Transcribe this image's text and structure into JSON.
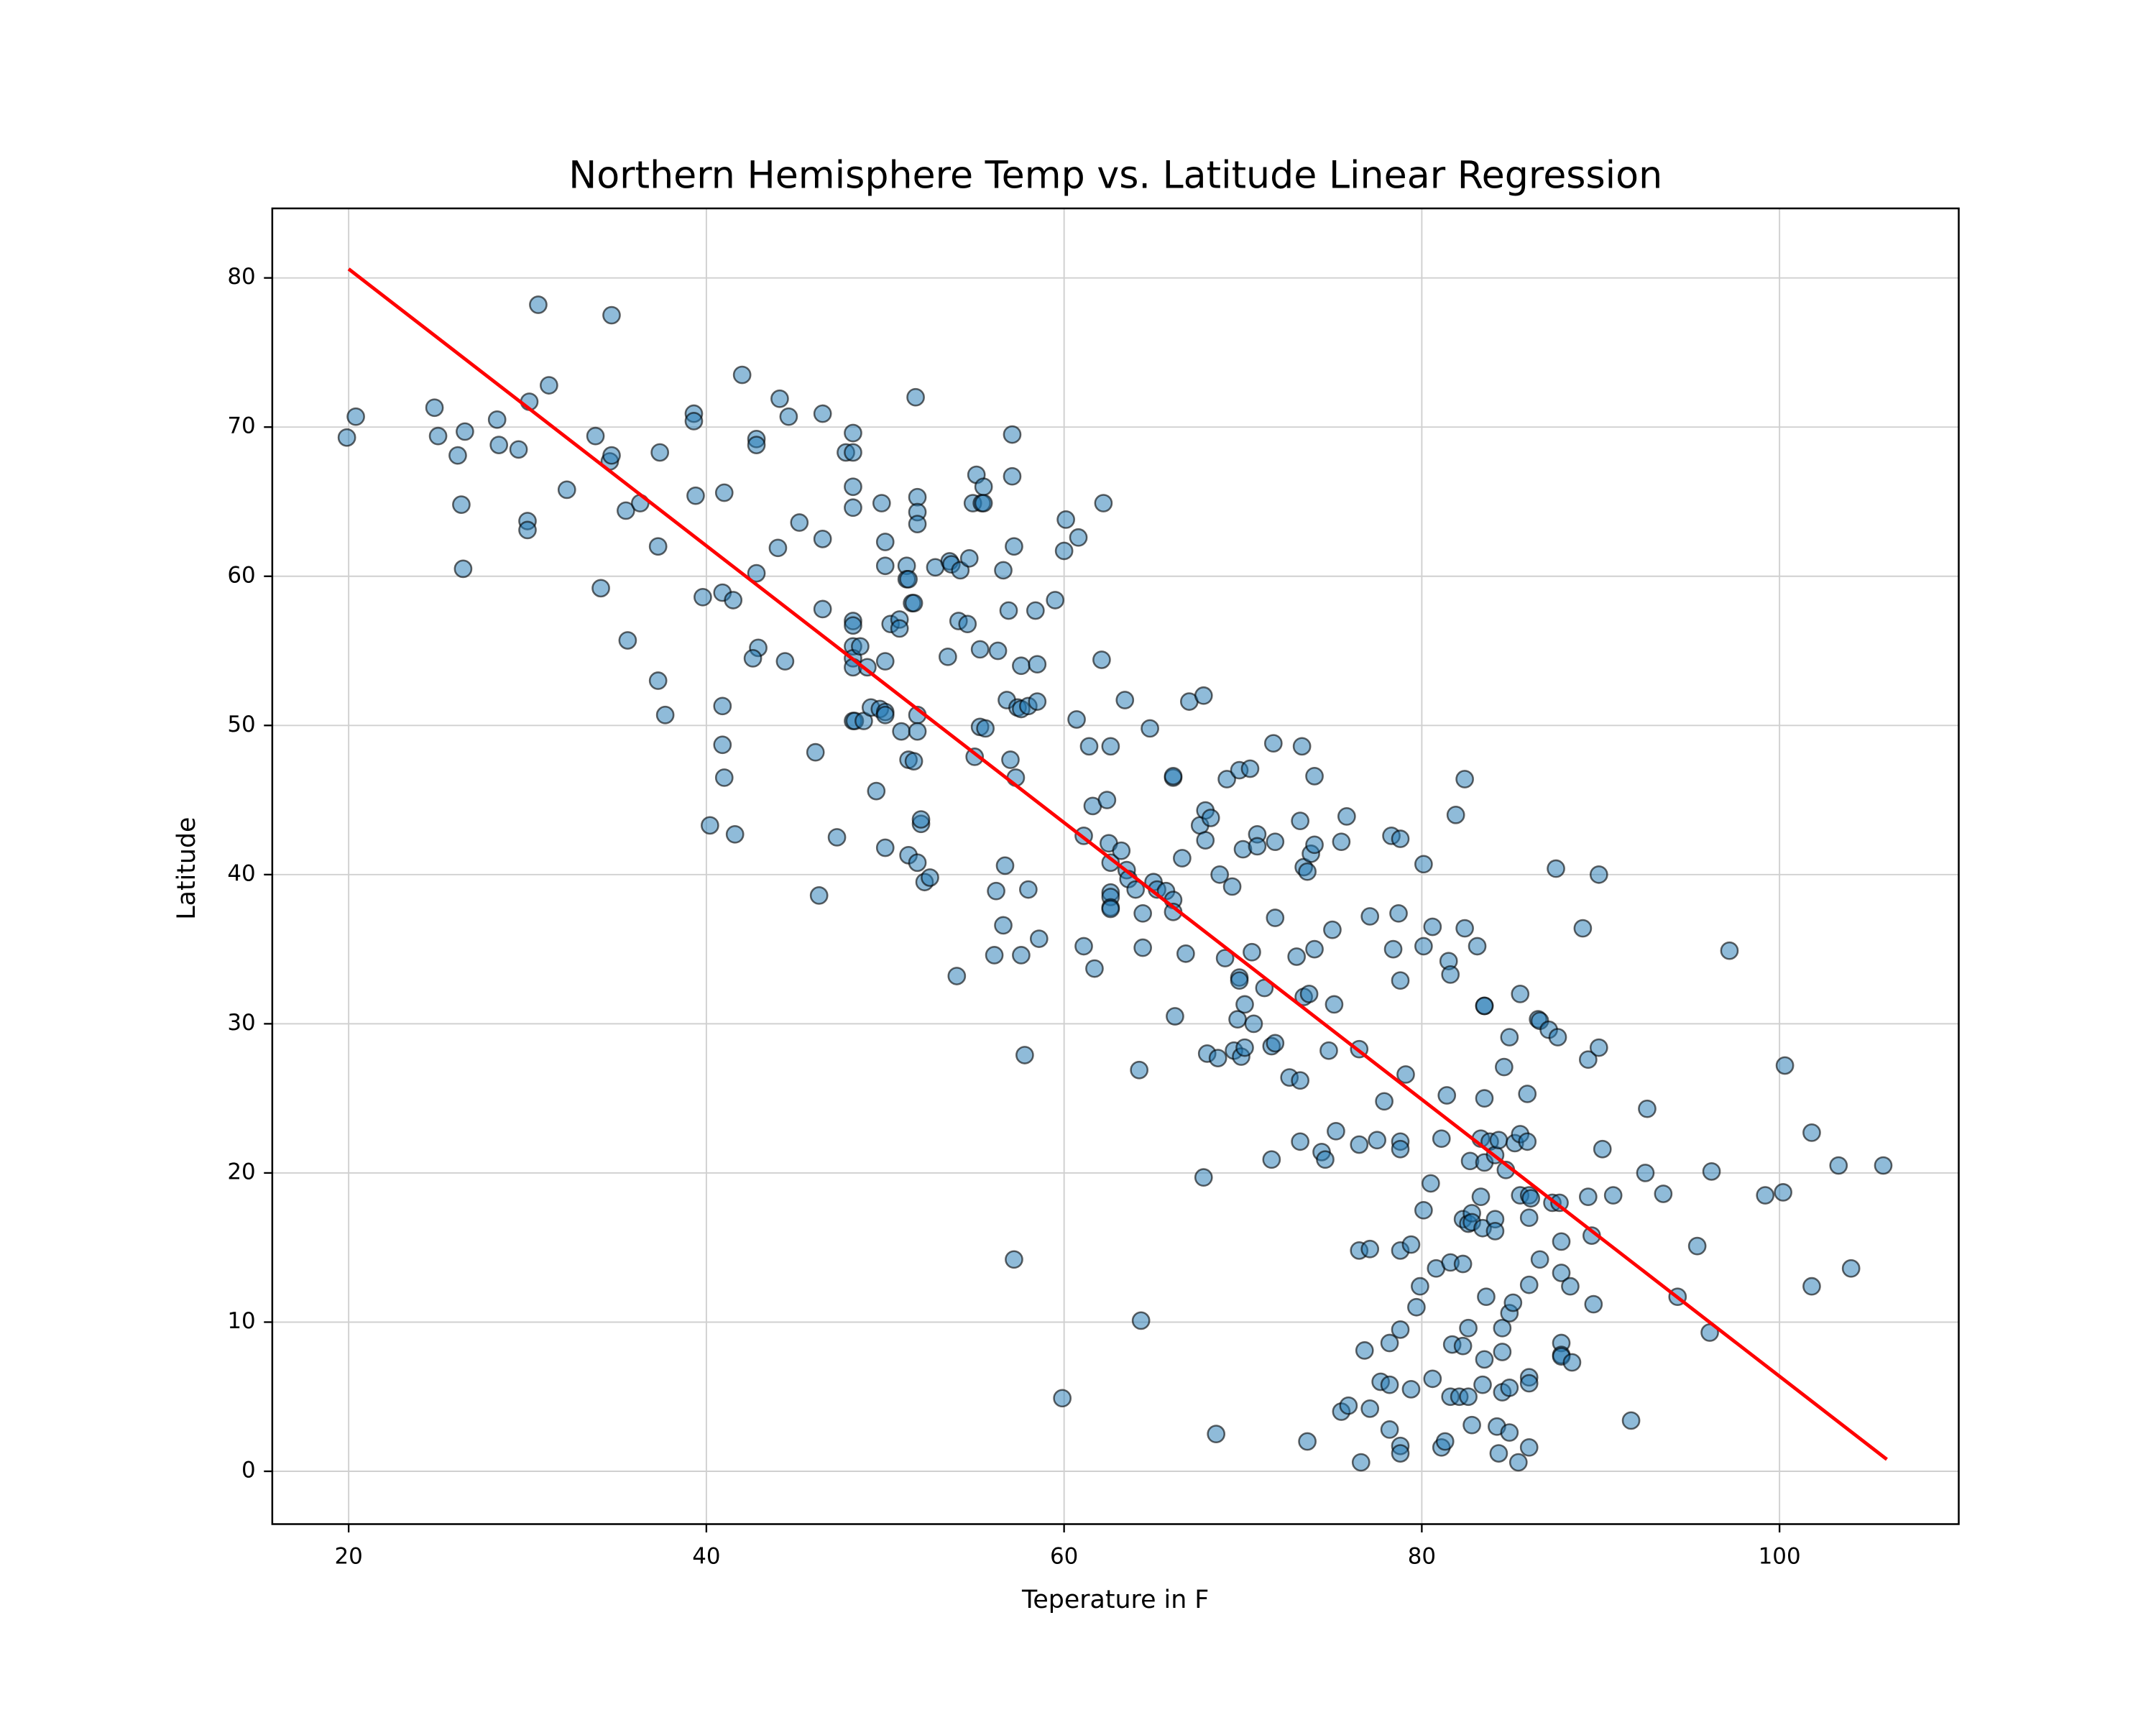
{
  "chart_data": {
    "type": "scatter",
    "title": "Northern Hemisphere Temp vs. Latitude Linear Regression",
    "xlabel": "Teperature in F",
    "ylabel": "Latitude",
    "xlim": [
      15.73,
      110.02
    ],
    "ylim": [
      -3.54,
      84.66
    ],
    "xticks": [
      20,
      40,
      60,
      80,
      100
    ],
    "yticks": [
      0,
      10,
      20,
      30,
      40,
      50,
      60,
      70,
      80
    ],
    "grid": true,
    "series": [
      {
        "type": "scatter",
        "color": "#1f77b4",
        "x": [
          19.9,
          20.4,
          24.8,
          25,
          26.5,
          26.1,
          26.3,
          26.4,
          28.3,
          28.4,
          29.5,
          30.1,
          30.6,
          31.2,
          30,
          30,
          32.2,
          33.8,
          34.6,
          34.7,
          34.7,
          34.1,
          35.5,
          35.6,
          36.3,
          37.4,
          37.3,
          37.3,
          37.7,
          39.3,
          39.3,
          39.4,
          39.8,
          40.2,
          40.9,
          41,
          41.5,
          40.9,
          40.9,
          41,
          41.6,
          42,
          42.8,
          42.8,
          42.8,
          42.9,
          42.6,
          44.1,
          44,
          44.6,
          44.4,
          45.2,
          46.1,
          46.3,
          46.5,
          46.5,
          46.5,
          47.3,
          47.8,
          48.2,
          48.2,
          48.2,
          48.2,
          48.2,
          48.2,
          48.2,
          48.2,
          48.2,
          48.2,
          48.3,
          48.6,
          48.8,
          49,
          49.2,
          49.5,
          49.7,
          49.8,
          50,
          50,
          50,
          50,
          50,
          50,
          50.3,
          50.8,
          50.8,
          50.9,
          51.2,
          51.2,
          51.3,
          51.3,
          51.3,
          51.5,
          51.6,
          51.6,
          51.7,
          51.8,
          51.8,
          51.8,
          51.8,
          51.8,
          51.8,
          52,
          52,
          52.2,
          52.5,
          52.8,
          53.5,
          53.6,
          53.7,
          54.1,
          54.2,
          54,
          54.6,
          54.7,
          54.9,
          55,
          55.1,
          55.3,
          55.3,
          55.4,
          55.5,
          55.5,
          55.6,
          56.1,
          56.2,
          56.3,
          56.6,
          56.6,
          56.7,
          56.8,
          56.9,
          57,
          57.1,
          57.1,
          57.2,
          57.2,
          57.3,
          57.4,
          57.6,
          57.6,
          57.6,
          57.8,
          58,
          58,
          58.4,
          58.5,
          58.5,
          58.6,
          59.5,
          60,
          60.1,
          59.9,
          60.7,
          60.8,
          61.1,
          61.1,
          61.4,
          61.6,
          61.7,
          62.1,
          62.2,
          62.4,
          62.6,
          62.5,
          62.6,
          62.6,
          62.6,
          62.6,
          62.6,
          63.2,
          63.4,
          63.5,
          63.6,
          64,
          64.2,
          64.3,
          64.4,
          64.4,
          64.8,
          65,
          65.2,
          65.7,
          66.1,
          66.1,
          66.1,
          66.1,
          66.2,
          66.6,
          66.8,
          67,
          67.6,
          67.8,
          67.8,
          67.9,
          67.9,
          68,
          68.2,
          68.5,
          68.6,
          68.7,
          69,
          69.1,
          69.4,
          69.5,
          69.7,
          69.8,
          69.8,
          69.8,
          69.9,
          70,
          70.1,
          70.1,
          70.4,
          70.5,
          70.6,
          70.8,
          70.8,
          71.2,
          71.6,
          71.6,
          71.7,
          71.8,
          71.8,
          71.8,
          72.6,
          73,
          73.2,
          73.2,
          73.2,
          73.3,
          73.4,
          73.4,
          73.6,
          73.6,
          73.7,
          73.8,
          74,
          74,
          74,
          74.4,
          74.6,
          74.8,
          75,
          75.1,
          75.2,
          75.5,
          75.5,
          75.8,
          75.9,
          76.5,
          76.5,
          76.5,
          76.6,
          76.8,
          77.1,
          77.1,
          77.1,
          77.5,
          77.7,
          77.9,
          78.2,
          78.2,
          78.2,
          78.3,
          78.4,
          78.7,
          78.8,
          78.8,
          78.8,
          78.8,
          78.8,
          78.8,
          78.8,
          78.8,
          79.1,
          79.4,
          79.4,
          79.7,
          79.9,
          80.1,
          80.1,
          80.1,
          80.5,
          80.6,
          80.6,
          80.8,
          81.1,
          81.1,
          81.3,
          81.4,
          81.5,
          81.6,
          81.6,
          81.6,
          81.7,
          81.9,
          82.1,
          82.3,
          82.3,
          82.3,
          82.4,
          82.4,
          82.6,
          82.6,
          82.6,
          82.7,
          82.8,
          82.8,
          82.8,
          83.1,
          83.3,
          83.3,
          83.4,
          83.4,
          83.5,
          83.5,
          83.5,
          83.5,
          83.6,
          83.5,
          83.8,
          84.1,
          84.1,
          84.1,
          84.2,
          84.3,
          84.3,
          84.5,
          84.5,
          84.5,
          84.6,
          84.7,
          84.9,
          84.9,
          84.9,
          84.9,
          85.1,
          85.2,
          85.4,
          85.5,
          85.5,
          85.5,
          85.9,
          85.9,
          86,
          86,
          86,
          86,
          86,
          86,
          86.1,
          86.5,
          86.6,
          86.6,
          87.1,
          87.3,
          87.5,
          87.6,
          87.7,
          87.8,
          87.8,
          87.8,
          87.8,
          87.8,
          88.3,
          88.4,
          89,
          89.3,
          89.3,
          89.5,
          89.6,
          89.9,
          89.9,
          90.1,
          90.7,
          91.7,
          92.5,
          92.6,
          93.5,
          94.3,
          95.4,
          96.1,
          96.2,
          97.2,
          99.2,
          100.2,
          100.3,
          101.8,
          101.8,
          103.3,
          104,
          105.8
        ],
        "values": [
          69.3,
          70.7,
          71.3,
          69.4,
          69.7,
          68.1,
          64.8,
          60.5,
          70.5,
          68.8,
          68.5,
          71.7,
          78.2,
          72.8,
          63.7,
          63.1,
          65.8,
          69.4,
          67.7,
          68.1,
          77.5,
          59.2,
          64.4,
          55.7,
          64.9,
          68.3,
          62,
          53,
          50.7,
          70.9,
          70.4,
          65.4,
          58.6,
          43.3,
          58.9,
          65.6,
          58.4,
          51.3,
          48.7,
          46.5,
          42.7,
          73.5,
          69.2,
          68.8,
          60.2,
          55.2,
          54.5,
          71.9,
          61.9,
          70.7,
          54.3,
          63.6,
          48.2,
          38.6,
          70.9,
          62.5,
          57.8,
          42.5,
          68.3,
          68.3,
          69.6,
          66,
          64.6,
          57,
          56.7,
          55.3,
          54.5,
          53.9,
          50.3,
          50.3,
          55.3,
          50.3,
          53.9,
          51.2,
          45.6,
          51.1,
          64.9,
          62.3,
          60.7,
          54.3,
          50.9,
          50.7,
          41.8,
          56.8,
          57.1,
          56.5,
          49.6,
          60.7,
          59.8,
          59.8,
          47.7,
          41.3,
          58.2,
          58.2,
          47.6,
          72,
          65.3,
          64.3,
          63.5,
          50.7,
          49.6,
          40.8,
          43.4,
          43.7,
          39.5,
          39.8,
          60.6,
          54.6,
          61,
          60.8,
          57,
          60.4,
          33.2,
          56.8,
          61.2,
          64.9,
          47.9,
          66.8,
          55.1,
          49.9,
          64.9,
          66,
          64.9,
          49.8,
          34.6,
          38.9,
          55,
          60.4,
          36.6,
          40.6,
          51.7,
          57.7,
          47.7,
          69.5,
          66.7,
          62,
          14.2,
          46.5,
          51.2,
          54,
          51.1,
          34.6,
          27.9,
          51.3,
          39,
          57.7,
          54.1,
          51.6,
          35.7,
          58.4,
          61.7,
          63.8,
          4.9,
          50.4,
          62.6,
          42.6,
          35.2,
          48.6,
          44.6,
          33.7,
          54.4,
          64.9,
          45,
          48.6,
          42.1,
          40.8,
          38.8,
          38.5,
          37.8,
          37.7,
          41.6,
          51.7,
          40.3,
          39.7,
          39,
          26.9,
          10.1,
          37.4,
          35.1,
          49.8,
          39.5,
          39,
          38.9,
          46.5,
          46.6,
          38.3,
          37.5,
          30.5,
          41.1,
          34.7,
          51.6,
          43.3,
          52,
          19.7,
          42.3,
          44.3,
          28,
          43.8,
          2.5,
          27.7,
          40,
          34.4,
          46.4,
          39.2,
          28.2,
          30.3,
          47,
          33.1,
          32.9,
          27.8,
          41.7,
          28.4,
          31.3,
          47.1,
          34.8,
          30,
          42.7,
          41.9,
          32.4,
          28.5,
          20.9,
          48.8,
          42.2,
          37.1,
          28.7,
          26.4,
          34.5,
          43.6,
          22.1,
          26.2,
          48.6,
          31.8,
          40.5,
          2,
          40.2,
          32,
          41.4,
          46.6,
          42,
          35,
          21.4,
          20.9,
          28.2,
          36.3,
          31.3,
          22.8,
          4,
          42.2,
          43.9,
          4.4,
          28.3,
          21.9,
          14.8,
          0.6,
          8.1,
          37.2,
          14.9,
          4.2,
          22.2,
          6,
          24.8,
          8.6,
          5.8,
          2.8,
          42.6,
          35,
          37.4,
          42.4,
          32.9,
          22.1,
          21.6,
          14.8,
          9.5,
          1.7,
          1.2,
          26.6,
          15.2,
          5.5,
          11,
          12.4,
          40.7,
          35.2,
          17.5,
          19.3,
          36.5,
          6.2,
          13.6,
          22.3,
          1.6,
          2,
          25.2,
          34.2,
          33.3,
          14,
          5,
          8.5,
          44,
          5,
          16.9,
          13.9,
          8.4,
          46.4,
          36.4,
          16.6,
          9.6,
          5,
          20.8,
          17.3,
          16.7,
          3.1,
          35.2,
          22.3,
          18.4,
          16.3,
          5.8,
          31.2,
          31.2,
          25,
          20.7,
          11.7,
          7.5,
          22.1,
          16.9,
          16.1,
          21.2,
          3,
          22.2,
          1.2,
          8,
          9.6,
          5.3,
          27.1,
          20.2,
          29.1,
          10.6,
          5.6,
          2.6,
          11.3,
          22,
          0.6,
          32,
          22.6,
          18.5,
          25.3,
          22.1,
          18.5,
          17,
          12.5,
          6.3,
          5.9,
          1.6,
          18.3,
          30.3,
          30.2,
          14.2,
          29.6,
          18,
          40.4,
          29.1,
          18,
          15.4,
          13.3,
          8.6,
          7.8,
          7.7,
          12.4,
          7.3,
          36.4,
          27.6,
          18.4,
          15.8,
          11.2,
          40,
          28.4,
          21.6,
          18.5,
          3.4,
          20,
          24.3,
          18.6,
          11.7,
          15.1,
          9.3,
          20.1,
          34.9,
          18.5,
          18.7,
          27.2,
          12.4,
          22.7,
          20.5,
          13.6,
          20.5
        ]
      },
      {
        "type": "line",
        "color": "#ff0000",
        "x": [
          20,
          106
        ],
        "values": [
          80.6,
          0.8
        ]
      }
    ]
  }
}
